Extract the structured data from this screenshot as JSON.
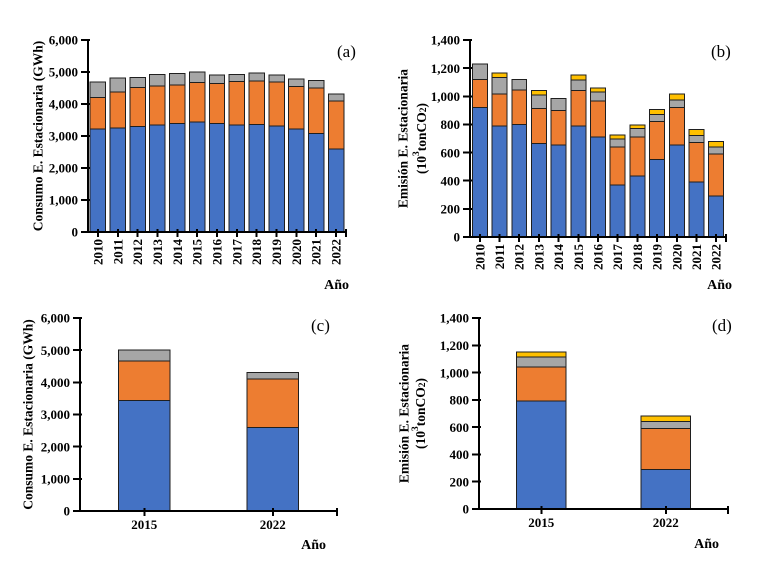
{
  "figure": {
    "background": "#ffffff"
  },
  "colors": {
    "blue": "#4472C4",
    "orange": "#ED7D31",
    "gray": "#A6A6A6",
    "yellow": "#FFC000",
    "axis": "#000000",
    "bar_border": "#1F1F1F"
  },
  "chart_data": [
    {
      "id": "a",
      "type": "bar",
      "stacked": true,
      "panel_label": "(a)",
      "ylabel_lines": [
        "Consumo E. Estacionaria (GWh)"
      ],
      "xlabel": "Año",
      "ylim": [
        0,
        6000
      ],
      "ytick_values": [
        0,
        1000,
        2000,
        3000,
        4000,
        5000,
        6000
      ],
      "ytick_labels": [
        "0",
        "1,000",
        "2,000",
        "3,000",
        "4,000",
        "5,000",
        "6,000"
      ],
      "grid": false,
      "legend": "none",
      "categories": [
        "2010",
        "2011",
        "2012",
        "2013",
        "2014",
        "2015",
        "2016",
        "2017",
        "2018",
        "2019",
        "2020",
        "2021",
        "2022"
      ],
      "series": [
        {
          "color": "blue",
          "values": [
            3220,
            3250,
            3300,
            3340,
            3390,
            3430,
            3390,
            3350,
            3360,
            3310,
            3220,
            3080,
            2600
          ]
        },
        {
          "color": "orange",
          "values": [
            980,
            1120,
            1210,
            1230,
            1210,
            1240,
            1250,
            1350,
            1360,
            1370,
            1330,
            1420,
            1500
          ]
        },
        {
          "color": "gray",
          "values": [
            490,
            440,
            320,
            350,
            350,
            330,
            260,
            220,
            250,
            220,
            230,
            230,
            210
          ]
        }
      ]
    },
    {
      "id": "b",
      "type": "bar",
      "stacked": true,
      "panel_label": "(b)",
      "ylabel_lines": [
        "Emisión E. Estacionaria",
        "(10³tonCO₂)"
      ],
      "xlabel": "Año",
      "ylim": [
        0,
        1400
      ],
      "ytick_values": [
        0,
        200,
        400,
        600,
        800,
        1000,
        1200,
        1400
      ],
      "ytick_labels": [
        "0",
        "200",
        "400",
        "600",
        "800",
        "1,000",
        "1,200",
        "1,400"
      ],
      "grid": false,
      "legend": "none",
      "categories": [
        "2010",
        "2011",
        "2012",
        "2013",
        "2014",
        "2015",
        "2016",
        "2017",
        "2018",
        "2019",
        "2020",
        "2021",
        "2022"
      ],
      "series": [
        {
          "color": "blue",
          "values": [
            920,
            790,
            800,
            665,
            655,
            790,
            710,
            370,
            435,
            550,
            655,
            390,
            290
          ]
        },
        {
          "color": "orange",
          "values": [
            200,
            225,
            245,
            250,
            245,
            250,
            255,
            270,
            275,
            270,
            265,
            280,
            300
          ]
        },
        {
          "color": "gray",
          "values": [
            110,
            120,
            75,
            95,
            85,
            75,
            65,
            55,
            60,
            50,
            55,
            50,
            50
          ]
        },
        {
          "color": "yellow",
          "values": [
            0,
            30,
            0,
            30,
            0,
            35,
            30,
            30,
            25,
            35,
            40,
            45,
            40
          ]
        }
      ]
    },
    {
      "id": "c",
      "type": "bar",
      "stacked": true,
      "panel_label": "(c)",
      "ylabel_lines": [
        "Consumo E. Estacionaria (GWh)"
      ],
      "xlabel": "Año",
      "ylim": [
        0,
        6000
      ],
      "ytick_values": [
        0,
        1000,
        2000,
        3000,
        4000,
        5000,
        6000
      ],
      "ytick_labels": [
        "0",
        "1,000",
        "2,000",
        "3,000",
        "4,000",
        "5,000",
        "6,000"
      ],
      "grid": false,
      "legend": "none",
      "categories": [
        "2015",
        "2022"
      ],
      "series": [
        {
          "color": "blue",
          "values": [
            3430,
            2600
          ]
        },
        {
          "color": "orange",
          "values": [
            1240,
            1500
          ]
        },
        {
          "color": "gray",
          "values": [
            330,
            210
          ]
        }
      ]
    },
    {
      "id": "d",
      "type": "bar",
      "stacked": true,
      "panel_label": "(d)",
      "ylabel_lines": [
        "Emisión E. Estacionaria",
        "(10³tonCO₂)"
      ],
      "xlabel": "Año",
      "ylim": [
        0,
        1400
      ],
      "ytick_values": [
        0,
        200,
        400,
        600,
        800,
        1000,
        1200,
        1400
      ],
      "ytick_labels": [
        "0",
        "200",
        "400",
        "600",
        "800",
        "1,000",
        "1,200",
        "1,400"
      ],
      "grid": false,
      "legend": "none",
      "categories": [
        "2015",
        "2022"
      ],
      "series": [
        {
          "color": "blue",
          "values": [
            790,
            290
          ]
        },
        {
          "color": "orange",
          "values": [
            250,
            300
          ]
        },
        {
          "color": "gray",
          "values": [
            75,
            50
          ]
        },
        {
          "color": "yellow",
          "values": [
            35,
            40
          ]
        }
      ]
    }
  ]
}
